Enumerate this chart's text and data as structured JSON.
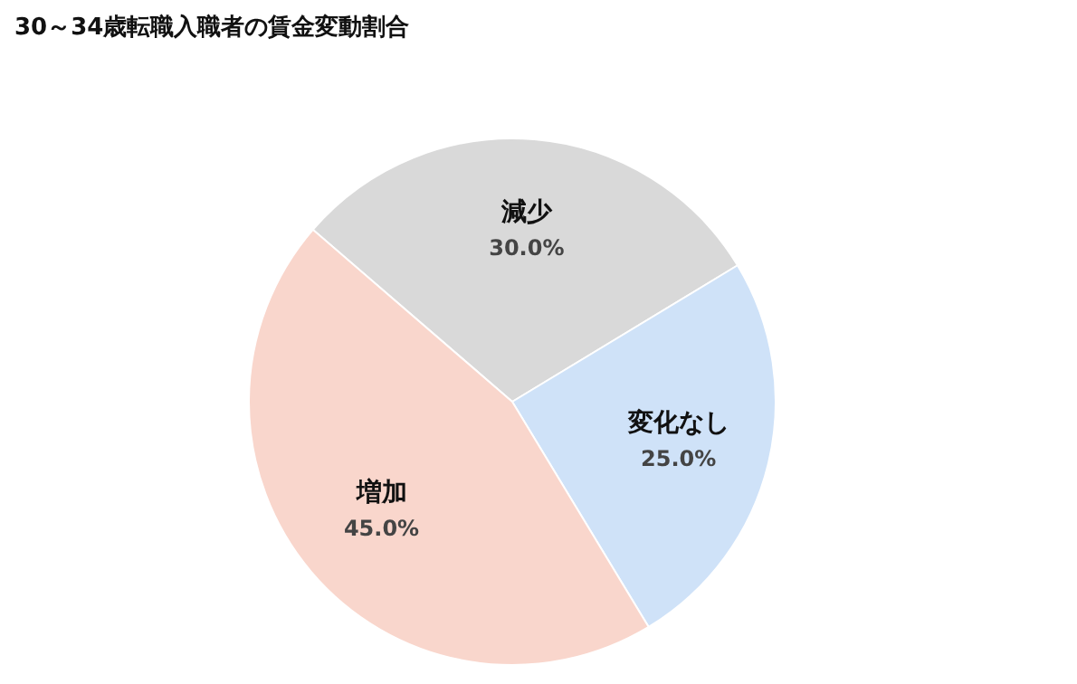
{
  "chart_data": {
    "type": "pie",
    "title": "30～34歳転職入職者の賃金変動割合",
    "categories": [
      "減少",
      "変化なし",
      "増加"
    ],
    "values": [
      30,
      25,
      45
    ],
    "colors": [
      "#d9d9d9",
      "#cfe2f8",
      "#f9d6cc"
    ],
    "value_labels": [
      "30.0%",
      "25.0%",
      "45.0%"
    ],
    "legend": false
  }
}
